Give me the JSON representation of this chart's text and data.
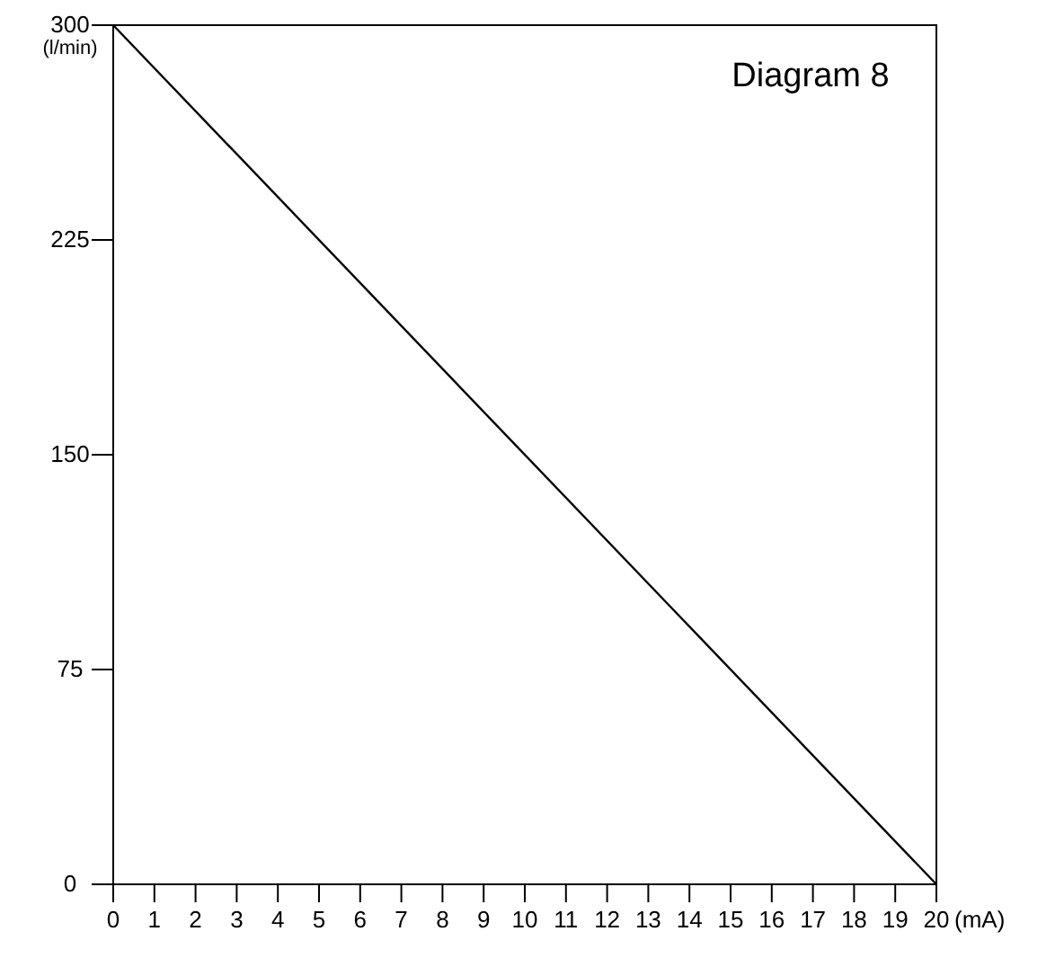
{
  "chart_data": {
    "type": "line",
    "title": "Diagram 8",
    "xlabel": "(mA)",
    "ylabel": "(l/min)",
    "x": [
      0,
      20
    ],
    "series": [
      {
        "color": "#000000",
        "values": [
          300,
          0
        ]
      }
    ],
    "xlim": [
      0,
      20
    ],
    "xticks": [
      0,
      1,
      2,
      3,
      4,
      5,
      6,
      7,
      8,
      9,
      10,
      11,
      12,
      13,
      14,
      15,
      16,
      17,
      18,
      19,
      20
    ],
    "ylim": [
      0,
      300
    ],
    "yticks": [
      0,
      75,
      150,
      225,
      300
    ],
    "grid": false,
    "marker": "none",
    "line_style": "solid"
  }
}
